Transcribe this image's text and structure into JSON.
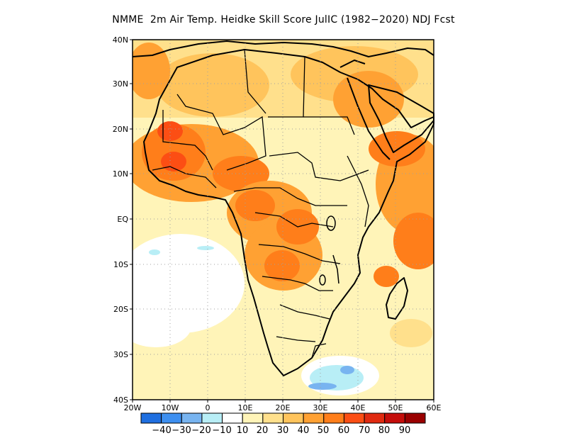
{
  "title": "NMME  2m Air Temp. Heidke Skill Score JulIC (1982−2020) NDJ Fcst",
  "map": {
    "lat_labels": [
      "40N",
      "30N",
      "20N",
      "10N",
      "EQ",
      "10S",
      "20S",
      "30S",
      "40S"
    ],
    "lon_labels": [
      "20W",
      "10W",
      "0",
      "10E",
      "20E",
      "30E",
      "40E",
      "50E",
      "60E"
    ],
    "lat_range": [
      -40,
      40
    ],
    "lon_range": [
      -20,
      60
    ],
    "grid": "dotted"
  },
  "colorbar": {
    "colors": [
      "#1f6fe0",
      "#3d8ff0",
      "#78b4f0",
      "#b8eef6",
      "#ffffff",
      "#fff4b8",
      "#ffe08c",
      "#ffc45c",
      "#ffa133",
      "#ff7e1a",
      "#fc4e14",
      "#e02a10",
      "#c40d0a",
      "#9a0000"
    ],
    "labels": [
      "−40",
      "−30",
      "−20",
      "−10",
      "10",
      "20",
      "30",
      "40",
      "50",
      "60",
      "70",
      "80",
      "90"
    ]
  }
}
